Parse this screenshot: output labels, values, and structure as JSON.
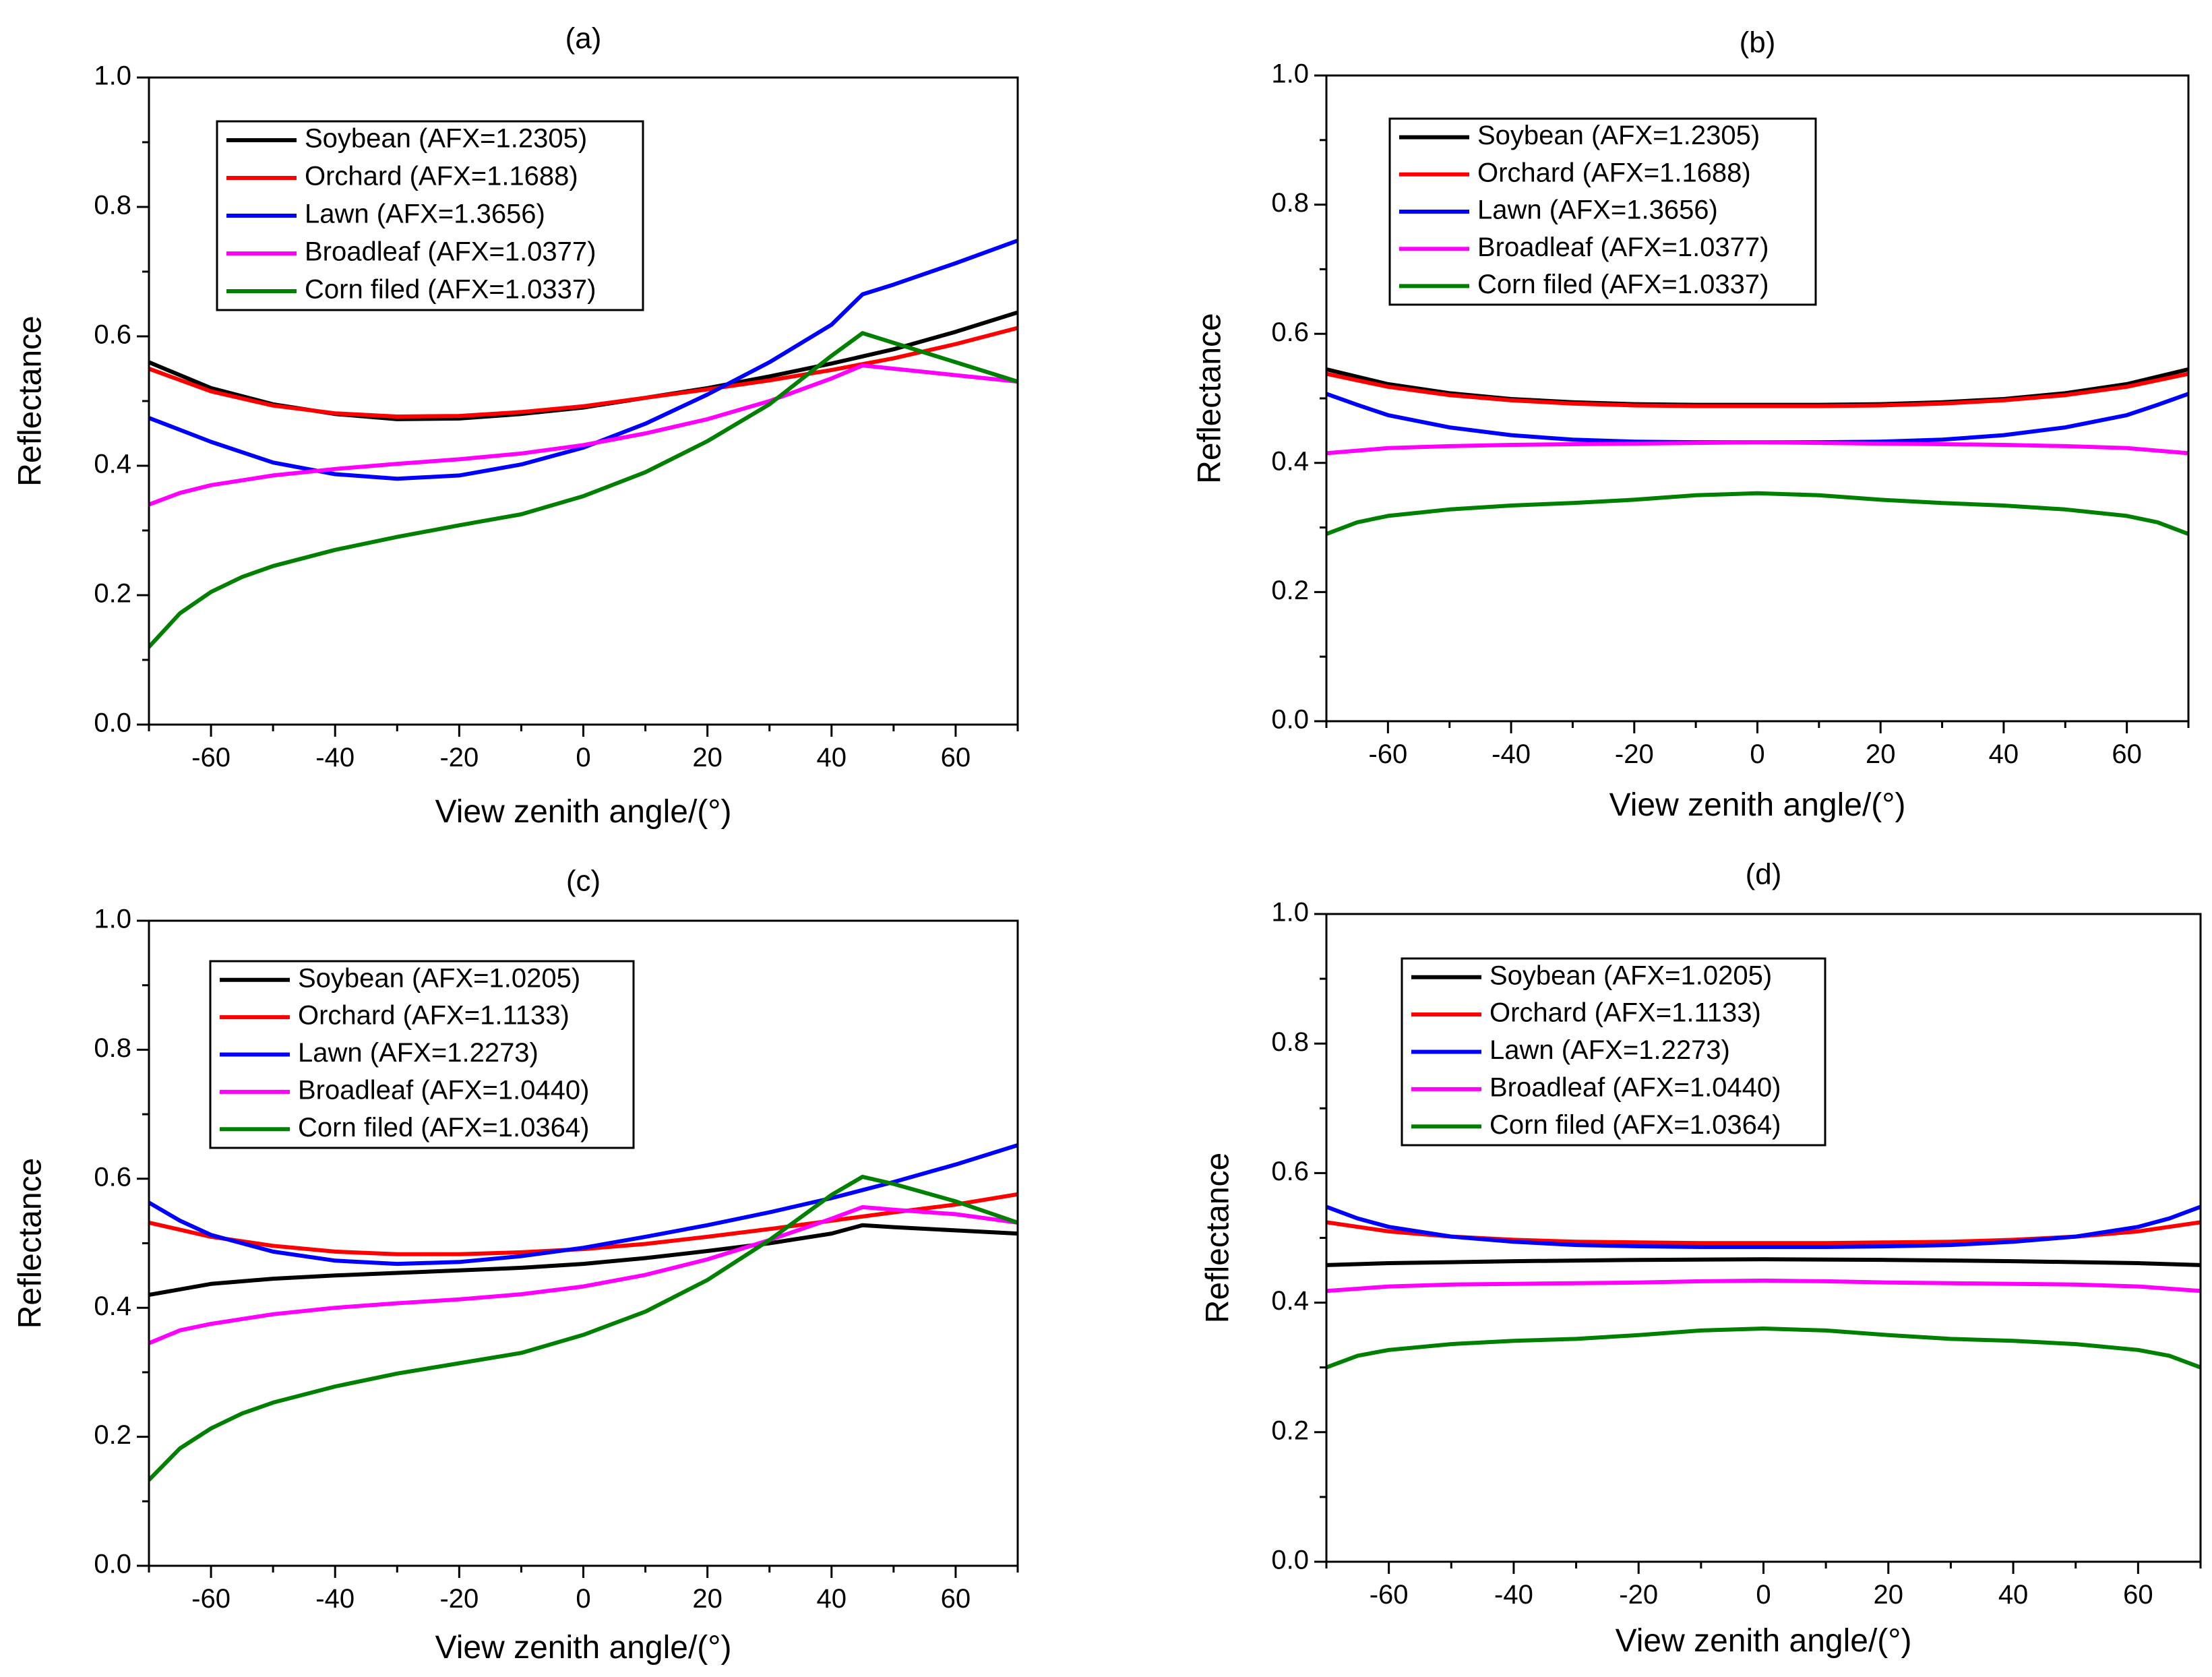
{
  "chart_data": [
    {
      "type": "line",
      "panel_label": "(a)",
      "xlabel": "View zenith angle/(°)",
      "ylabel": "Reflectance",
      "xlim": [
        -70,
        70
      ],
      "ylim": [
        0.0,
        1.0
      ],
      "xticks": [
        "-60",
        "-40",
        "-20",
        "0",
        "20",
        "40",
        "60"
      ],
      "yticks": [
        "0.0",
        "0.2",
        "0.4",
        "0.6",
        "0.8",
        "1.0"
      ],
      "legend_position": "top-left",
      "series": [
        {
          "name": "Soybean (AFX=1.2305)",
          "color": "#000000",
          "x": [
            -70,
            -60,
            -50,
            -40,
            -30,
            -20,
            -10,
            0,
            10,
            20,
            30,
            40,
            50,
            60,
            70
          ],
          "y": [
            0.56,
            0.52,
            0.495,
            0.48,
            0.472,
            0.473,
            0.48,
            0.49,
            0.505,
            0.52,
            0.538,
            0.558,
            0.58,
            0.607,
            0.637
          ]
        },
        {
          "name": "Orchard (AFX=1.1688)",
          "color": "#ff0000",
          "x": [
            -70,
            -60,
            -50,
            -40,
            -30,
            -20,
            -10,
            0,
            10,
            20,
            30,
            40,
            50,
            60,
            70
          ],
          "y": [
            0.55,
            0.515,
            0.493,
            0.481,
            0.476,
            0.477,
            0.483,
            0.492,
            0.505,
            0.518,
            0.532,
            0.548,
            0.566,
            0.588,
            0.613
          ]
        },
        {
          "name": "Lawn (AFX=1.3656)",
          "color": "#0000ff",
          "x": [
            -70,
            -60,
            -50,
            -40,
            -30,
            -20,
            -10,
            0,
            10,
            20,
            30,
            40,
            45,
            50,
            60,
            70
          ],
          "y": [
            0.474,
            0.437,
            0.405,
            0.387,
            0.38,
            0.385,
            0.402,
            0.428,
            0.465,
            0.51,
            0.56,
            0.618,
            0.665,
            0.68,
            0.713,
            0.748
          ]
        },
        {
          "name": "Broadleaf (AFX=1.0377)",
          "color": "#ff00ff",
          "x": [
            -70,
            -65,
            -60,
            -50,
            -40,
            -30,
            -20,
            -10,
            0,
            10,
            20,
            30,
            40,
            45,
            50,
            60,
            70
          ],
          "y": [
            0.34,
            0.358,
            0.37,
            0.385,
            0.395,
            0.403,
            0.41,
            0.419,
            0.432,
            0.45,
            0.472,
            0.5,
            0.535,
            0.555,
            0.55,
            0.54,
            0.53
          ]
        },
        {
          "name": "Corn filed (AFX=1.0337)",
          "color": "#008000",
          "x": [
            -70,
            -65,
            -60,
            -55,
            -50,
            -40,
            -30,
            -20,
            -10,
            0,
            10,
            20,
            30,
            40,
            45,
            50,
            60,
            70
          ],
          "y": [
            0.12,
            0.172,
            0.205,
            0.228,
            0.245,
            0.27,
            0.29,
            0.308,
            0.325,
            0.353,
            0.39,
            0.438,
            0.495,
            0.57,
            0.605,
            0.59,
            0.56,
            0.53
          ]
        }
      ]
    },
    {
      "type": "line",
      "panel_label": "(b)",
      "xlabel": "View zenith angle/(°)",
      "ylabel": "Reflectance",
      "xlim": [
        -70,
        70
      ],
      "ylim": [
        0.0,
        1.0
      ],
      "xticks": [
        "-60",
        "-40",
        "-20",
        "0",
        "20",
        "40",
        "60"
      ],
      "yticks": [
        "0.0",
        "0.2",
        "0.4",
        "0.6",
        "0.8",
        "1.0"
      ],
      "legend_position": "top-left",
      "series": [
        {
          "name": "Soybean (AFX=1.2305)",
          "color": "#000000",
          "x": [
            -70,
            -60,
            -50,
            -40,
            -30,
            -20,
            -10,
            0,
            10,
            20,
            30,
            40,
            50,
            60,
            70
          ],
          "y": [
            0.545,
            0.522,
            0.508,
            0.499,
            0.494,
            0.491,
            0.49,
            0.49,
            0.49,
            0.491,
            0.494,
            0.499,
            0.508,
            0.522,
            0.545
          ]
        },
        {
          "name": "Orchard (AFX=1.1688)",
          "color": "#ff0000",
          "x": [
            -70,
            -60,
            -50,
            -40,
            -30,
            -20,
            -10,
            0,
            10,
            20,
            30,
            40,
            50,
            60,
            70
          ],
          "y": [
            0.538,
            0.518,
            0.505,
            0.497,
            0.492,
            0.489,
            0.488,
            0.488,
            0.488,
            0.489,
            0.492,
            0.497,
            0.505,
            0.518,
            0.538
          ]
        },
        {
          "name": "Lawn (AFX=1.3656)",
          "color": "#0000ff",
          "x": [
            -70,
            -65,
            -60,
            -50,
            -40,
            -30,
            -20,
            -10,
            0,
            10,
            20,
            30,
            40,
            50,
            60,
            65,
            70
          ],
          "y": [
            0.507,
            0.49,
            0.474,
            0.455,
            0.443,
            0.436,
            0.433,
            0.432,
            0.432,
            0.432,
            0.433,
            0.436,
            0.443,
            0.455,
            0.474,
            0.49,
            0.507
          ]
        },
        {
          "name": "Broadleaf (AFX=1.0377)",
          "color": "#ff00ff",
          "x": [
            -70,
            -60,
            -50,
            -40,
            -30,
            -20,
            -10,
            0,
            10,
            20,
            30,
            40,
            50,
            60,
            70
          ],
          "y": [
            0.415,
            0.423,
            0.426,
            0.428,
            0.429,
            0.43,
            0.431,
            0.432,
            0.431,
            0.43,
            0.429,
            0.428,
            0.426,
            0.423,
            0.415
          ]
        },
        {
          "name": "Corn filed (AFX=1.0337)",
          "color": "#008000",
          "x": [
            -70,
            -65,
            -60,
            -50,
            -40,
            -30,
            -20,
            -10,
            0,
            10,
            20,
            30,
            40,
            50,
            60,
            65,
            70
          ],
          "y": [
            0.29,
            0.308,
            0.318,
            0.328,
            0.334,
            0.338,
            0.343,
            0.35,
            0.353,
            0.35,
            0.343,
            0.338,
            0.334,
            0.328,
            0.318,
            0.308,
            0.29
          ]
        }
      ]
    },
    {
      "type": "line",
      "panel_label": "(c)",
      "xlabel": "View zenith angle/(°)",
      "ylabel": "Reflectance",
      "xlim": [
        -70,
        70
      ],
      "ylim": [
        0.0,
        1.0
      ],
      "xticks": [
        "-60",
        "-40",
        "-20",
        "0",
        "20",
        "40",
        "60"
      ],
      "yticks": [
        "0.0",
        "0.2",
        "0.4",
        "0.6",
        "0.8",
        "1.0"
      ],
      "legend_position": "top-left",
      "series": [
        {
          "name": "Soybean (AFX=1.0205)",
          "color": "#000000",
          "x": [
            -70,
            -60,
            -50,
            -40,
            -30,
            -20,
            -10,
            0,
            10,
            20,
            30,
            40,
            45,
            50,
            60,
            70
          ],
          "y": [
            0.42,
            0.437,
            0.445,
            0.45,
            0.454,
            0.458,
            0.462,
            0.468,
            0.477,
            0.488,
            0.5,
            0.515,
            0.528,
            0.525,
            0.52,
            0.515
          ]
        },
        {
          "name": "Orchard (AFX=1.1133)",
          "color": "#ff0000",
          "x": [
            -70,
            -60,
            -50,
            -40,
            -30,
            -20,
            -10,
            0,
            10,
            20,
            30,
            40,
            50,
            60,
            70
          ],
          "y": [
            0.532,
            0.51,
            0.496,
            0.487,
            0.483,
            0.483,
            0.486,
            0.491,
            0.499,
            0.51,
            0.522,
            0.535,
            0.548,
            0.56,
            0.576
          ]
        },
        {
          "name": "Lawn (AFX=1.2273)",
          "color": "#0000ff",
          "x": [
            -70,
            -65,
            -60,
            -50,
            -40,
            -30,
            -20,
            -10,
            0,
            10,
            20,
            30,
            40,
            50,
            60,
            70
          ],
          "y": [
            0.563,
            0.535,
            0.513,
            0.487,
            0.473,
            0.468,
            0.471,
            0.48,
            0.493,
            0.51,
            0.528,
            0.548,
            0.57,
            0.595,
            0.622,
            0.652
          ]
        },
        {
          "name": "Broadleaf (AFX=1.0440)",
          "color": "#ff00ff",
          "x": [
            -70,
            -65,
            -60,
            -50,
            -40,
            -30,
            -20,
            -10,
            0,
            10,
            20,
            30,
            40,
            45,
            50,
            60,
            70
          ],
          "y": [
            0.345,
            0.365,
            0.375,
            0.39,
            0.4,
            0.407,
            0.413,
            0.421,
            0.433,
            0.451,
            0.475,
            0.505,
            0.538,
            0.556,
            0.552,
            0.545,
            0.532
          ]
        },
        {
          "name": "Corn filed (AFX=1.0364)",
          "color": "#008000",
          "x": [
            -70,
            -65,
            -60,
            -55,
            -50,
            -40,
            -30,
            -20,
            -10,
            0,
            10,
            20,
            30,
            40,
            45,
            50,
            60,
            70
          ],
          "y": [
            0.133,
            0.182,
            0.213,
            0.236,
            0.253,
            0.278,
            0.298,
            0.314,
            0.33,
            0.358,
            0.394,
            0.443,
            0.505,
            0.575,
            0.603,
            0.592,
            0.565,
            0.532
          ]
        }
      ]
    },
    {
      "type": "line",
      "panel_label": "(d)",
      "xlabel": "View zenith angle/(°)",
      "ylabel": "Reflectance",
      "xlim": [
        -70,
        70
      ],
      "ylim": [
        0.0,
        1.0
      ],
      "xticks": [
        "-60",
        "-40",
        "-20",
        "0",
        "20",
        "40",
        "60"
      ],
      "yticks": [
        "0.0",
        "0.2",
        "0.4",
        "0.6",
        "0.8",
        "1.0"
      ],
      "legend_position": "top-left",
      "series": [
        {
          "name": "Soybean (AFX=1.0205)",
          "color": "#000000",
          "x": [
            -70,
            -60,
            -40,
            -20,
            0,
            20,
            40,
            60,
            70
          ],
          "y": [
            0.458,
            0.461,
            0.464,
            0.466,
            0.467,
            0.466,
            0.464,
            0.461,
            0.458
          ]
        },
        {
          "name": "Orchard (AFX=1.1133)",
          "color": "#ff0000",
          "x": [
            -70,
            -60,
            -50,
            -40,
            -30,
            -20,
            -10,
            0,
            10,
            20,
            30,
            40,
            50,
            60,
            70
          ],
          "y": [
            0.524,
            0.51,
            0.502,
            0.497,
            0.494,
            0.493,
            0.492,
            0.492,
            0.492,
            0.493,
            0.494,
            0.497,
            0.502,
            0.51,
            0.524
          ]
        },
        {
          "name": "Lawn (AFX=1.2273)",
          "color": "#0000ff",
          "x": [
            -70,
            -65,
            -60,
            -50,
            -40,
            -30,
            -20,
            -10,
            0,
            10,
            20,
            30,
            40,
            50,
            60,
            65,
            70
          ],
          "y": [
            0.548,
            0.53,
            0.517,
            0.502,
            0.494,
            0.489,
            0.487,
            0.486,
            0.486,
            0.486,
            0.487,
            0.489,
            0.494,
            0.502,
            0.517,
            0.53,
            0.548
          ]
        },
        {
          "name": "Broadleaf (AFX=1.0440)",
          "color": "#ff00ff",
          "x": [
            -70,
            -60,
            -50,
            -40,
            -30,
            -20,
            -10,
            0,
            10,
            20,
            30,
            40,
            50,
            60,
            70
          ],
          "y": [
            0.418,
            0.425,
            0.428,
            0.429,
            0.43,
            0.431,
            0.433,
            0.434,
            0.433,
            0.431,
            0.43,
            0.429,
            0.428,
            0.425,
            0.418
          ]
        },
        {
          "name": "Corn filed (AFX=1.0364)",
          "color": "#008000",
          "x": [
            -70,
            -65,
            -60,
            -50,
            -40,
            -30,
            -20,
            -10,
            0,
            10,
            20,
            30,
            40,
            50,
            60,
            65,
            70
          ],
          "y": [
            0.3,
            0.318,
            0.327,
            0.336,
            0.341,
            0.344,
            0.35,
            0.357,
            0.36,
            0.357,
            0.35,
            0.344,
            0.341,
            0.336,
            0.327,
            0.318,
            0.3
          ]
        }
      ]
    }
  ]
}
